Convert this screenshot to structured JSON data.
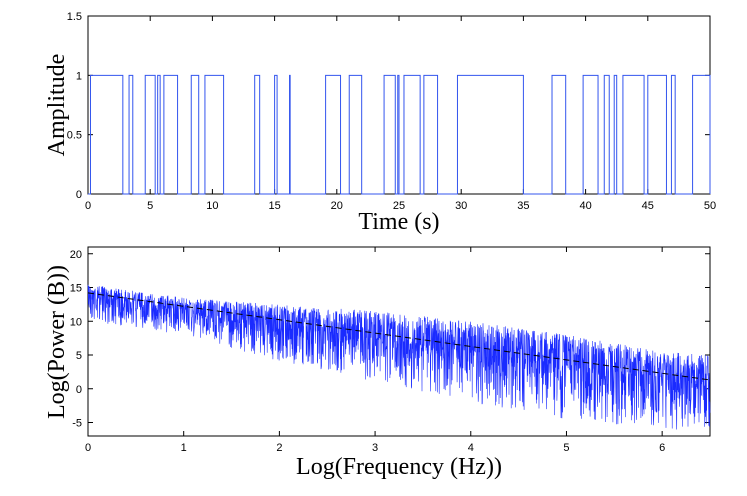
{
  "chart_data": [
    {
      "type": "line",
      "title": "",
      "xlabel": "Time (s)",
      "ylabel": "Amplitude",
      "xlim": [
        0,
        50
      ],
      "ylim": [
        0,
        1.5
      ],
      "xticks": [
        0,
        5,
        10,
        15,
        20,
        25,
        30,
        35,
        40,
        45,
        50
      ],
      "yticks": [
        0,
        0.5,
        1,
        1.5
      ],
      "xtick_labels": [
        "0",
        "5",
        "10",
        "15",
        "20",
        "25",
        "30",
        "35",
        "40",
        "45",
        "50"
      ],
      "ytick_labels": [
        "0",
        "0.5",
        "1",
        "1.5"
      ],
      "line_color": "#3355ee",
      "series": [
        {
          "step": true,
          "x": [
            0,
            0.2,
            2.8,
            3.3,
            3.6,
            4.6,
            5.4,
            5.6,
            5.8,
            6.1,
            7.2,
            8.3,
            8.9,
            9.4,
            10.9,
            13.4,
            13.8,
            15.0,
            15.2,
            16.2,
            16.25,
            19.1,
            20.3,
            21.0,
            22.0,
            23.8,
            24.7,
            24.9,
            25.0,
            25.4,
            26.7,
            27.0,
            28.1,
            29.7,
            35.0,
            37.3,
            38.4,
            39.8,
            41.0,
            41.5,
            41.9,
            42.3,
            42.5,
            43.0,
            44.7,
            45.0,
            46.5,
            46.9,
            47.2,
            48.6,
            50
          ],
          "y": [
            0,
            1,
            0,
            1,
            0,
            1,
            0,
            1,
            0,
            1,
            0,
            1,
            0,
            1,
            0,
            1,
            0,
            1,
            0,
            1,
            0,
            1,
            0,
            1,
            0,
            1,
            0,
            1,
            0,
            1,
            0,
            1,
            0,
            1,
            0,
            1,
            0,
            1,
            0,
            1,
            0,
            1,
            0,
            1,
            0,
            1,
            0,
            1,
            0,
            1,
            0
          ]
        }
      ]
    },
    {
      "type": "line",
      "title": "",
      "xlabel": "Log(Frequency (Hz))",
      "ylabel": "Log(Power (B))",
      "xlim": [
        0,
        6.5
      ],
      "ylim": [
        -7,
        21
      ],
      "xticks": [
        0,
        1,
        2,
        3,
        4,
        5,
        6
      ],
      "yticks": [
        -5,
        0,
        5,
        10,
        15,
        20
      ],
      "xtick_labels": [
        "0",
        "1",
        "2",
        "3",
        "4",
        "5",
        "6"
      ],
      "ytick_labels": [
        "-5",
        "0",
        "5",
        "10",
        "15",
        "20"
      ],
      "line_color": "#1a2bff",
      "fit_color": "#000000",
      "series": [
        {
          "kind": "spectrum",
          "trend_x": [
            0,
            1,
            2,
            3,
            4,
            5,
            6,
            6.5
          ],
          "trend_y": [
            14.0,
            11.6,
            9.4,
            7.6,
            5.6,
            3.6,
            1.8,
            1.0
          ],
          "band_x": [
            0,
            1,
            2,
            3,
            4,
            5,
            6,
            6.5
          ],
          "band_top": [
            15.5,
            13.5,
            12.5,
            11.5,
            10.0,
            8.0,
            5.5,
            5.0
          ],
          "band_bottom": [
            10.0,
            8.0,
            4.0,
            1.0,
            -2.0,
            -4.5,
            -6.0,
            -6.5
          ]
        },
        {
          "kind": "fit",
          "dashed": true,
          "x": [
            0,
            6.5
          ],
          "y": [
            14.2,
            1.3
          ]
        }
      ]
    }
  ]
}
